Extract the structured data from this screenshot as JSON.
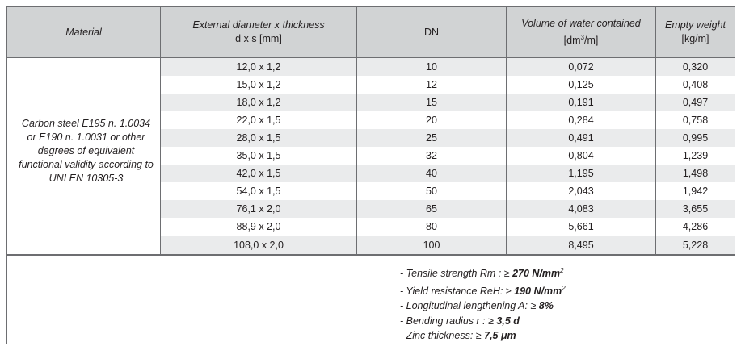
{
  "header": {
    "material": "Material",
    "external_diameter": "External diameter x thickness",
    "external_unit": "d x s  [mm]",
    "dn": "DN",
    "volume": "Volume of water contained",
    "volume_unit_base": "[dm",
    "volume_unit_exp": "3",
    "volume_unit_tail": "/m]",
    "weight": "Empty weight",
    "weight_unit": "[kg/m]"
  },
  "material_text": "Carbon steel E195 n. 1.0034 or E190 n. 1.0031 or other degrees of equivalent functional validity according to UNI EN 10305-3",
  "rows": [
    {
      "dxs": "12,0 x 1,2",
      "dn": "10",
      "volume": "0,072",
      "weight": "0,320"
    },
    {
      "dxs": "15,0 x 1,2",
      "dn": "12",
      "volume": "0,125",
      "weight": "0,408"
    },
    {
      "dxs": "18,0 x 1,2",
      "dn": "15",
      "volume": "0,191",
      "weight": "0,497"
    },
    {
      "dxs": "22,0 x 1,5",
      "dn": "20",
      "volume": "0,284",
      "weight": "0,758"
    },
    {
      "dxs": "28,0 x 1,5",
      "dn": "25",
      "volume": "0,491",
      "weight": "0,995"
    },
    {
      "dxs": "35,0 x 1,5",
      "dn": "32",
      "volume": "0,804",
      "weight": "1,239"
    },
    {
      "dxs": "42,0 x 1,5",
      "dn": "40",
      "volume": "1,195",
      "weight": "1,498"
    },
    {
      "dxs": "54,0 x 1,5",
      "dn": "50",
      "volume": "2,043",
      "weight": "1,942"
    },
    {
      "dxs": "76,1 x 2,0",
      "dn": "65",
      "volume": "4,083",
      "weight": "3,655"
    },
    {
      "dxs": "88,9 x 2,0",
      "dn": "80",
      "volume": "5,661",
      "weight": "4,286"
    },
    {
      "dxs": "108,0 x 2,0",
      "dn": "100",
      "volume": "8,495",
      "weight": "5,228"
    }
  ],
  "properties": [
    {
      "label": "- Tensile strength Rm : ≥",
      "value": " 270  N/mm",
      "exp": "2"
    },
    {
      "label": "- Yield resistance ReH: ≥",
      "value": " 190 N/mm",
      "exp": "2"
    },
    {
      "label": "- Longitudinal lengthening  A: ≥",
      "value": "  8%",
      "exp": ""
    },
    {
      "label": "- Bending radius r : ≥",
      "value": " 3,5 d",
      "exp": ""
    },
    {
      "label": "- Zinc thickness: ≥",
      "value": " 7,5 μm",
      "exp": ""
    }
  ]
}
